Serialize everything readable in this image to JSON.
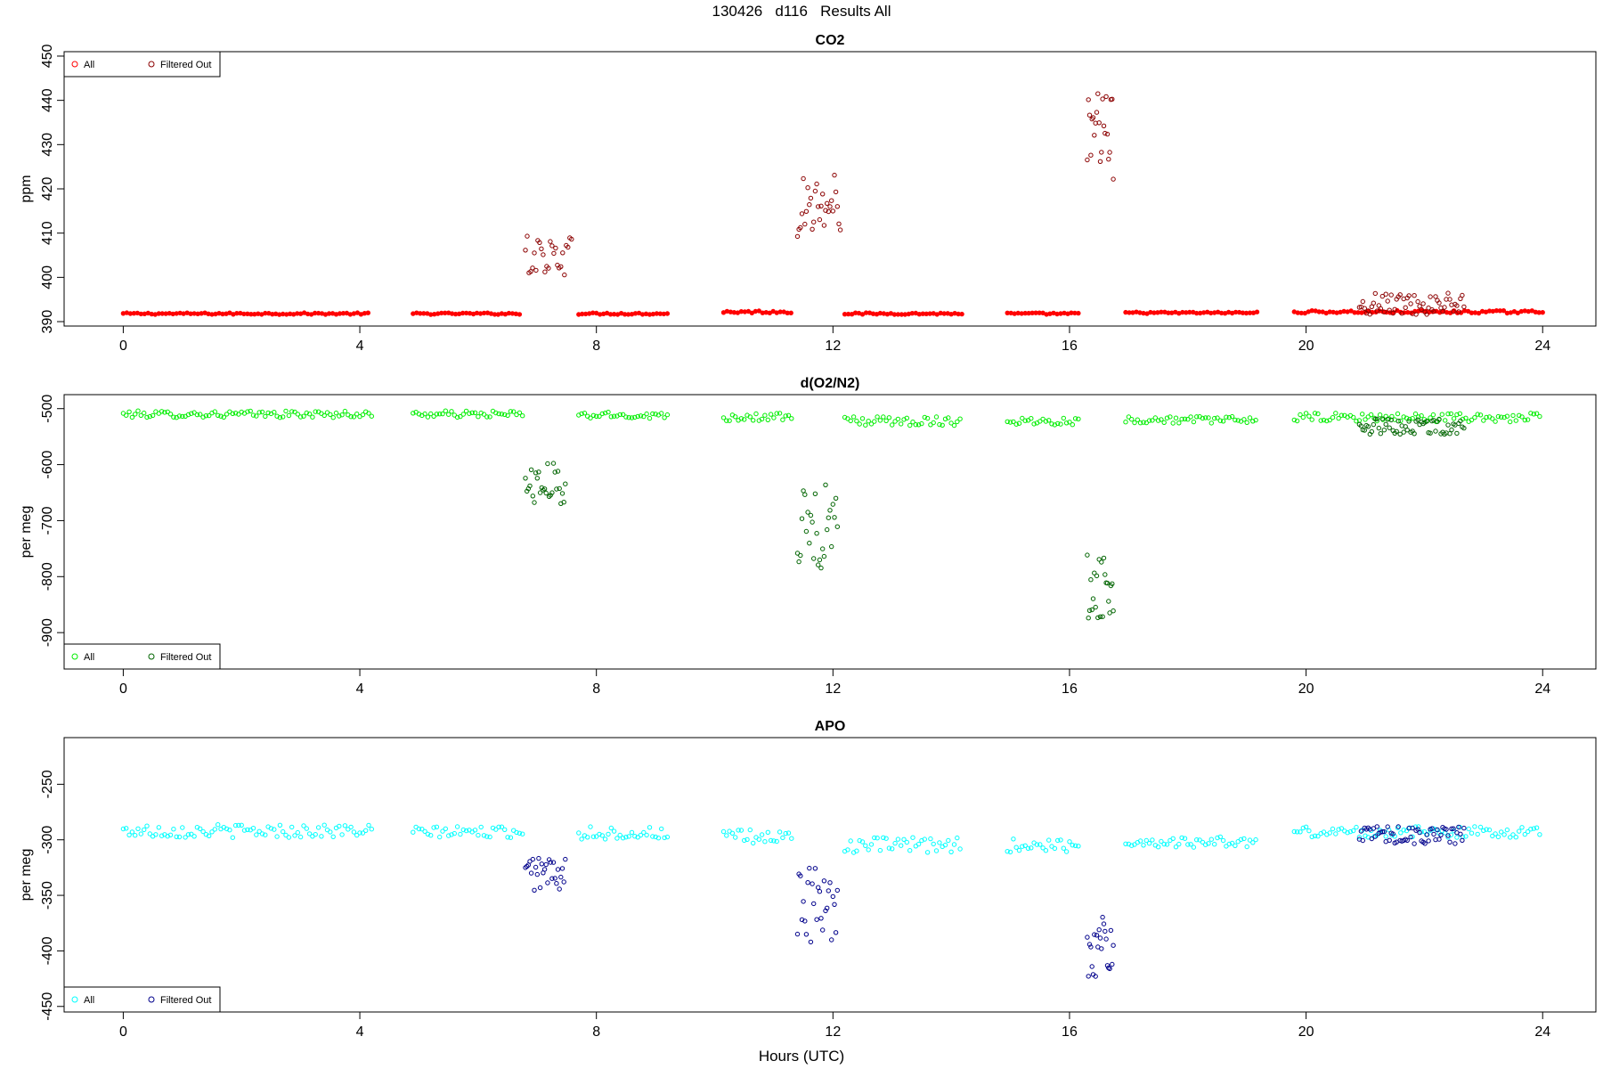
{
  "figure": {
    "title": "130426   d116   Results All",
    "xlabel": "Hours (UTC)"
  },
  "chart_data": [
    {
      "type": "scatter",
      "title": "CO2",
      "xlabel": "Hours (UTC)",
      "ylabel": "ppm",
      "xlim": [
        -1,
        24.9
      ],
      "ylim": [
        389,
        451
      ],
      "xticks": [
        0,
        4,
        8,
        12,
        16,
        20,
        24
      ],
      "yticks": [
        390,
        400,
        410,
        420,
        430,
        440,
        450
      ],
      "legend": {
        "position": "top-left",
        "entries": [
          "All",
          "Filtered Out"
        ]
      },
      "grid": false,
      "series": [
        {
          "name": "All",
          "color": "#ff0000",
          "style": "filled-ring",
          "segments": [
            {
              "start": 0.0,
              "end": 4.2,
              "step": 0.06,
              "level": 391.8,
              "noise": 0.2
            },
            {
              "start": 4.9,
              "end": 6.75,
              "step": 0.06,
              "level": 391.8,
              "noise": 0.2
            },
            {
              "start": 7.7,
              "end": 9.25,
              "step": 0.06,
              "level": 391.8,
              "noise": 0.2
            },
            {
              "start": 10.15,
              "end": 11.35,
              "step": 0.06,
              "level": 392.2,
              "noise": 0.3
            },
            {
              "start": 12.2,
              "end": 14.2,
              "step": 0.06,
              "level": 391.8,
              "noise": 0.2
            },
            {
              "start": 14.95,
              "end": 16.2,
              "step": 0.06,
              "level": 391.8,
              "noise": 0.2
            },
            {
              "start": 16.95,
              "end": 19.2,
              "step": 0.06,
              "level": 392.0,
              "noise": 0.2
            },
            {
              "start": 19.8,
              "end": 24.0,
              "step": 0.06,
              "level": 392.2,
              "noise": 0.3
            }
          ]
        },
        {
          "name": "Filtered Out",
          "color": "#8b0000",
          "style": "ring",
          "segments": [
            {
              "start": 6.8,
              "end": 7.6,
              "step": 0.03,
              "level": 405,
              "noise": 4.5
            },
            {
              "start": 11.4,
              "end": 12.15,
              "step": 0.025,
              "level": 416,
              "noise": 9
            },
            {
              "start": 16.3,
              "end": 16.75,
              "step": 0.02,
              "level": 432,
              "noise": 10
            },
            {
              "start": 20.9,
              "end": 22.7,
              "step": 0.03,
              "level": 394,
              "noise": 2.5
            }
          ]
        }
      ]
    },
    {
      "type": "scatter",
      "title": "d(O2/N2)",
      "xlabel": "Hours (UTC)",
      "ylabel": "per meg",
      "xlim": [
        -1,
        24.9
      ],
      "ylim": [
        -965,
        -475
      ],
      "xticks": [
        0,
        4,
        8,
        12,
        16,
        20,
        24
      ],
      "yticks": [
        -500,
        -600,
        -700,
        -800,
        -900
      ],
      "legend": {
        "position": "bottom-left",
        "entries": [
          "All",
          "Filtered Out"
        ]
      },
      "grid": false,
      "series": [
        {
          "name": "All",
          "color": "#00ee00",
          "style": "ring",
          "segments": [
            {
              "start": 0.0,
              "end": 4.2,
              "step": 0.05,
              "level": -510,
              "noise": 6
            },
            {
              "start": 4.9,
              "end": 6.75,
              "step": 0.05,
              "level": -510,
              "noise": 6
            },
            {
              "start": 7.7,
              "end": 9.25,
              "step": 0.05,
              "level": -512,
              "noise": 6
            },
            {
              "start": 10.15,
              "end": 11.35,
              "step": 0.05,
              "level": -515,
              "noise": 7
            },
            {
              "start": 12.2,
              "end": 14.2,
              "step": 0.05,
              "level": -522,
              "noise": 8
            },
            {
              "start": 14.95,
              "end": 16.2,
              "step": 0.05,
              "level": -522,
              "noise": 7
            },
            {
              "start": 16.95,
              "end": 19.2,
              "step": 0.05,
              "level": -520,
              "noise": 6
            },
            {
              "start": 19.8,
              "end": 24.0,
              "step": 0.05,
              "level": -516,
              "noise": 8
            }
          ]
        },
        {
          "name": "Filtered Out",
          "color": "#006400",
          "style": "ring",
          "segments": [
            {
              "start": 6.8,
              "end": 7.5,
              "step": 0.025,
              "level": -635,
              "noise": 38
            },
            {
              "start": 11.4,
              "end": 12.1,
              "step": 0.025,
              "level": -710,
              "noise": 75
            },
            {
              "start": 16.3,
              "end": 16.75,
              "step": 0.02,
              "level": -820,
              "noise": 70
            },
            {
              "start": 20.9,
              "end": 22.7,
              "step": 0.03,
              "level": -532,
              "noise": 14
            }
          ]
        }
      ]
    },
    {
      "type": "scatter",
      "title": "APO",
      "xlabel": "Hours (UTC)",
      "ylabel": "per meg",
      "xlim": [
        -1,
        24.9
      ],
      "ylim": [
        -455,
        -208
      ],
      "xticks": [
        0,
        4,
        8,
        12,
        16,
        20,
        24
      ],
      "yticks": [
        -250,
        -300,
        -350,
        -400,
        -450
      ],
      "legend": {
        "position": "bottom-left",
        "entries": [
          "All",
          "Filtered Out"
        ]
      },
      "grid": false,
      "series": [
        {
          "name": "All",
          "color": "#00ffff",
          "style": "ring",
          "segments": [
            {
              "start": 0.0,
              "end": 4.2,
              "step": 0.05,
              "level": -292,
              "noise": 6
            },
            {
              "start": 4.9,
              "end": 6.75,
              "step": 0.05,
              "level": -293,
              "noise": 5
            },
            {
              "start": 7.7,
              "end": 9.25,
              "step": 0.05,
              "level": -294,
              "noise": 6
            },
            {
              "start": 10.15,
              "end": 11.35,
              "step": 0.05,
              "level": -298,
              "noise": 7
            },
            {
              "start": 12.2,
              "end": 14.2,
              "step": 0.05,
              "level": -305,
              "noise": 7
            },
            {
              "start": 14.95,
              "end": 16.2,
              "step": 0.05,
              "level": -305,
              "noise": 6
            },
            {
              "start": 16.95,
              "end": 19.2,
              "step": 0.05,
              "level": -302,
              "noise": 5
            },
            {
              "start": 19.8,
              "end": 24.0,
              "step": 0.05,
              "level": -293,
              "noise": 5
            }
          ]
        },
        {
          "name": "Filtered Out",
          "color": "#00008b",
          "style": "ring",
          "segments": [
            {
              "start": 6.8,
              "end": 7.5,
              "step": 0.025,
              "level": -330,
              "noise": 16
            },
            {
              "start": 11.4,
              "end": 12.1,
              "step": 0.025,
              "level": -360,
              "noise": 35
            },
            {
              "start": 16.3,
              "end": 16.75,
              "step": 0.02,
              "level": -395,
              "noise": 28
            },
            {
              "start": 20.9,
              "end": 22.7,
              "step": 0.03,
              "level": -296,
              "noise": 8
            }
          ]
        }
      ]
    }
  ]
}
